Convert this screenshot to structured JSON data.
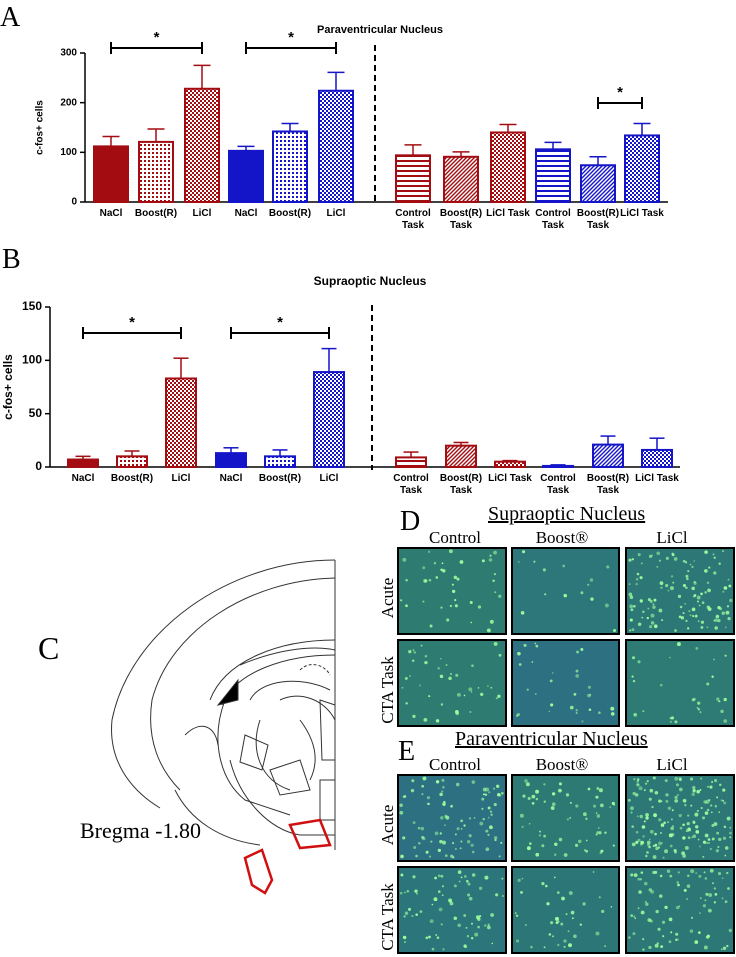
{
  "chart_data": [
    {
      "type": "bar",
      "panel": "A",
      "title": "Paraventricular Nucleus",
      "ylabel": "c-fos+ cells",
      "categories": [
        "NaCl",
        "Boost(R)",
        "LiCl",
        "NaCl",
        "Boost(R)",
        "LiCl",
        "Control Task",
        "Boost(R) Task",
        "LiCl Task",
        "Control Task",
        "Boost(R) Task",
        "LiCl Task"
      ],
      "values": [
        112,
        121,
        228,
        103,
        142,
        224,
        94,
        91,
        140,
        106,
        74,
        134
      ],
      "errors": [
        20,
        26,
        47,
        9,
        16,
        37,
        21,
        10,
        16,
        14,
        17,
        24
      ],
      "colors": [
        "#a30d12",
        "#a30d12",
        "#a30d12",
        "#1414c8",
        "#1414c8",
        "#1414c8",
        "#a30d12",
        "#a30d12",
        "#a30d12",
        "#1414c8",
        "#1414c8",
        "#1414c8"
      ],
      "patterns": [
        "solid",
        "dotted",
        "checkered",
        "solid",
        "dotted",
        "checkered",
        "horizontal",
        "diagonal",
        "checkered",
        "horizontal",
        "diagonal",
        "checkered"
      ],
      "ylim": [
        0,
        300
      ],
      "yticks": [
        0,
        100,
        200,
        300
      ],
      "annotations": [
        "*",
        "*",
        "*"
      ]
    },
    {
      "type": "bar",
      "panel": "B",
      "title": "Supraoptic Nucleus",
      "ylabel": "c-fos+ cells",
      "categories": [
        "NaCl",
        "Boost(R)",
        "LiCl",
        "NaCl",
        "Boost(R)",
        "LiCl",
        "Control Task",
        "Boost(R) Task",
        "LiCl Task",
        "Control Task",
        "Boost(R) Task",
        "LiCl Task"
      ],
      "values": [
        7,
        10,
        83,
        13,
        10,
        89,
        9,
        20,
        5,
        1,
        21,
        16
      ],
      "errors": [
        3,
        5,
        19,
        5,
        6,
        22,
        5,
        3,
        1,
        1,
        8,
        11
      ],
      "colors": [
        "#a30d12",
        "#a30d12",
        "#a30d12",
        "#1414c8",
        "#1414c8",
        "#1414c8",
        "#a30d12",
        "#a30d12",
        "#a30d12",
        "#1414c8",
        "#1414c8",
        "#1414c8"
      ],
      "patterns": [
        "solid",
        "dotted",
        "checkered",
        "solid",
        "dotted",
        "checkered",
        "horizontal",
        "diagonal",
        "checkered",
        "horizontal",
        "diagonal",
        "checkered"
      ],
      "ylim": [
        0,
        150
      ],
      "yticks": [
        0,
        50,
        100,
        150
      ],
      "annotations": [
        "*",
        "*"
      ]
    }
  ],
  "figure": {
    "panel_c": {
      "label": "C",
      "caption": "Bregma -1.80"
    },
    "panel_d": {
      "label": "D",
      "title": "Supraoptic Nucleus",
      "columns": [
        "Control",
        "Boost®",
        "LiCl"
      ],
      "rows": [
        "Acute",
        "CTA Task"
      ]
    },
    "panel_e": {
      "label": "E",
      "title": "Paraventricular Nucleus",
      "columns": [
        "Control",
        "Boost®",
        "LiCl"
      ],
      "rows": [
        "Acute",
        "CTA Task"
      ]
    }
  }
}
